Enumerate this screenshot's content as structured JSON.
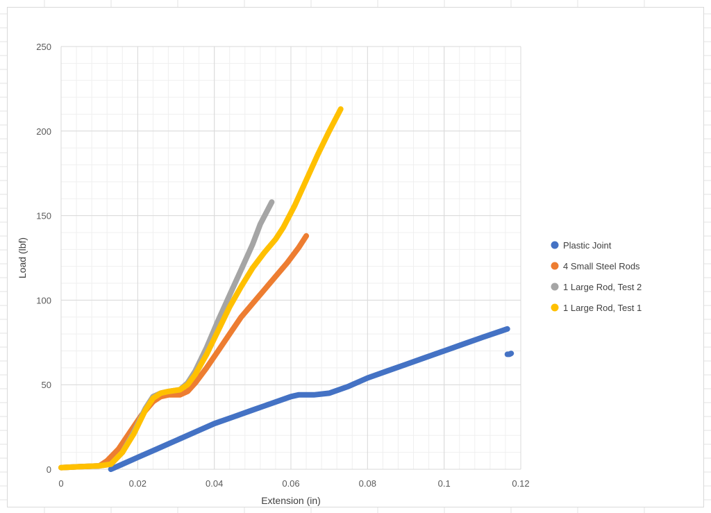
{
  "chart_data": {
    "type": "scatter",
    "title": "",
    "xlabel": "Extension (in)",
    "ylabel": "Load (lbf)",
    "xlim": [
      0,
      0.12
    ],
    "ylim": [
      0,
      250
    ],
    "x_ticks": [
      "0",
      "0.02",
      "0.04",
      "0.06",
      "0.08",
      "0.1",
      "0.12"
    ],
    "y_ticks": [
      "0",
      "50",
      "100",
      "150",
      "200",
      "250"
    ],
    "x_tick_values": [
      0,
      0.02,
      0.04,
      0.06,
      0.08,
      0.1,
      0.12
    ],
    "y_tick_values": [
      0,
      50,
      100,
      150,
      200,
      250
    ],
    "grid": true,
    "legend_position": "right",
    "series": [
      {
        "name": "Plastic Joint",
        "color": "#4472C4",
        "x": [
          0.013,
          0.016,
          0.02,
          0.025,
          0.03,
          0.035,
          0.04,
          0.045,
          0.05,
          0.055,
          0.06,
          0.062,
          0.066,
          0.07,
          0.075,
          0.08,
          0.085,
          0.09,
          0.095,
          0.1,
          0.105,
          0.11,
          0.1165
        ],
        "y": [
          0,
          3,
          7,
          12,
          17,
          22,
          27,
          31,
          35,
          39,
          43,
          44,
          44,
          45,
          49,
          54,
          58,
          62,
          66,
          70,
          74,
          78,
          83
        ],
        "extra_points": {
          "x": [
            0.1165,
            0.117,
            0.1175
          ],
          "y": [
            68,
            68,
            68.5
          ]
        }
      },
      {
        "name": "4 Small Steel Rods",
        "color": "#ED7D31",
        "x": [
          0,
          0.005,
          0.01,
          0.012,
          0.015,
          0.018,
          0.021,
          0.024,
          0.026,
          0.028,
          0.031,
          0.033,
          0.035,
          0.038,
          0.041,
          0.044,
          0.047,
          0.05,
          0.053,
          0.056,
          0.059,
          0.062,
          0.064
        ],
        "y": [
          1,
          1.5,
          2,
          5,
          12,
          22,
          32,
          40,
          43,
          44,
          44,
          46,
          51,
          60,
          70,
          80,
          90,
          98,
          106,
          114,
          122,
          131,
          138
        ]
      },
      {
        "name": "1 Large Rod, Test 2",
        "color": "#A5A5A5",
        "x": [
          0,
          0.005,
          0.01,
          0.013,
          0.016,
          0.019,
          0.022,
          0.024,
          0.026,
          0.028,
          0.031,
          0.033,
          0.035,
          0.038,
          0.041,
          0.044,
          0.047,
          0.05,
          0.052,
          0.055
        ],
        "y": [
          1,
          1.5,
          2,
          3,
          10,
          22,
          36,
          43,
          45,
          46,
          47,
          51,
          58,
          72,
          88,
          103,
          118,
          133,
          145,
          158
        ]
      },
      {
        "name": "1 Large Rod, Test 1",
        "color": "#FFC000",
        "x": [
          0,
          0.005,
          0.01,
          0.013,
          0.016,
          0.019,
          0.022,
          0.024,
          0.026,
          0.028,
          0.031,
          0.033,
          0.035,
          0.038,
          0.041,
          0.044,
          0.047,
          0.05,
          0.053,
          0.056,
          0.058,
          0.061,
          0.064,
          0.067,
          0.07,
          0.073
        ],
        "y": [
          1,
          1.5,
          2,
          3,
          10,
          21,
          35,
          42,
          45,
          46,
          47,
          50,
          56,
          68,
          82,
          96,
          108,
          119,
          128,
          136,
          143,
          156,
          171,
          186,
          200,
          213
        ]
      }
    ]
  }
}
